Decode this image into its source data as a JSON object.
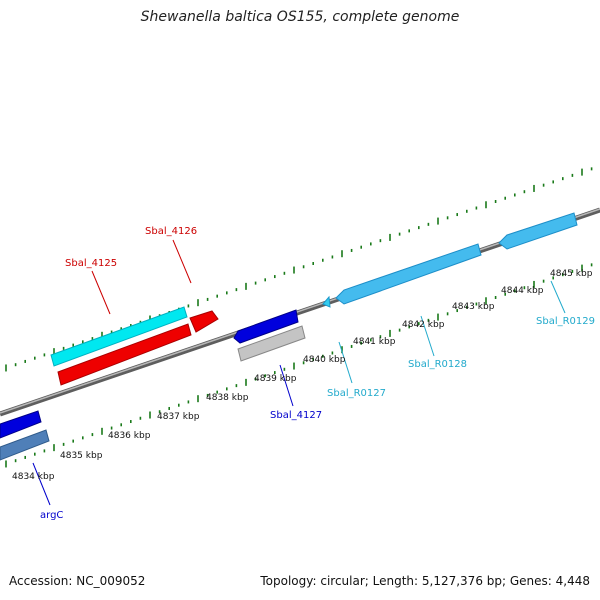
{
  "title": "Shewanella baltica OS155, complete genome",
  "footer": {
    "accession": "Accession: NC_009052",
    "stats": "Topology: circular; Length: 5,127,376 bp; Genes: 4,448"
  },
  "scale": {
    "unit": "kbp",
    "labels": [
      "4834 kbp",
      "4835 kbp",
      "4836 kbp",
      "4837 kbp",
      "4838 kbp",
      "4839 kbp",
      "4840 kbp",
      "4841 kbp",
      "4842 kbp",
      "4843 kbp",
      "4844 kbp",
      "4845 kbp"
    ]
  },
  "gene_labels": {
    "sbal_4126": "Sbal_4126",
    "sbal_4125": "Sbal_4125",
    "sbal_4127": "Sbal_4127",
    "argc": "argC",
    "sbal_r0127": "Sbal_R0127",
    "sbal_r0128": "Sbal_R0128",
    "sbal_r0129": "Sbal_R0129"
  },
  "colors": {
    "cds_forward": "#00ffff",
    "cds_reverse": "#ff0000",
    "cds_blue": "#0000cc",
    "cds_gray": "#bbbbbb",
    "cds_steel": "#4f7fb8",
    "rrna": "#44bbee",
    "tick": "#1a7a1a",
    "axis": "#888888",
    "label_red": "#cc0000",
    "label_blue": "#0000cc",
    "label_cyan": "#22aacc"
  }
}
